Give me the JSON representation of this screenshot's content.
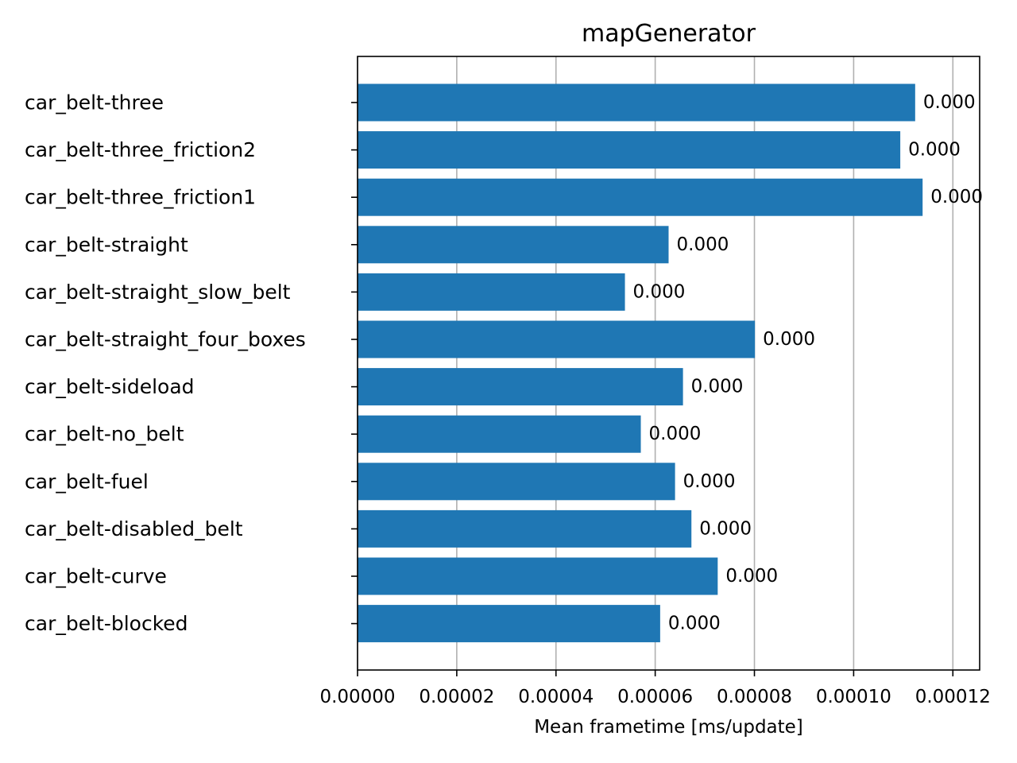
{
  "chart_data": {
    "type": "bar",
    "orientation": "horizontal",
    "title": "mapGenerator",
    "xlabel": "Mean frametime [ms/update]",
    "ylabel": "",
    "xlim": [
      0,
      0.0001254
    ],
    "x_ticks": [
      "0.00000",
      "0.00002",
      "0.00004",
      "0.00006",
      "0.00008",
      "0.00010",
      "0.00012"
    ],
    "x_tick_values": [
      0,
      2e-05,
      4e-05,
      6e-05,
      8e-05,
      0.0001,
      0.00012
    ],
    "grid": "x",
    "bar_color": "#1f77b4",
    "categories": [
      "car_belt-three",
      "car_belt-three_friction2",
      "car_belt-three_friction1",
      "car_belt-straight",
      "car_belt-straight_slow_belt",
      "car_belt-straight_four_boxes",
      "car_belt-sideload",
      "car_belt-no_belt",
      "car_belt-fuel",
      "car_belt-disabled_belt",
      "car_belt-curve",
      "car_belt-blocked"
    ],
    "values": [
      0.0001124,
      0.0001094,
      0.0001139,
      6.27e-05,
      5.39e-05,
      8.01e-05,
      6.56e-05,
      5.71e-05,
      6.4e-05,
      6.73e-05,
      7.26e-05,
      6.1e-05
    ],
    "data_labels": [
      "0.000",
      "0.000",
      "0.000",
      "0.000",
      "0.000",
      "0.000",
      "0.000",
      "0.000",
      "0.000",
      "0.000",
      "0.000",
      "0.000"
    ]
  }
}
